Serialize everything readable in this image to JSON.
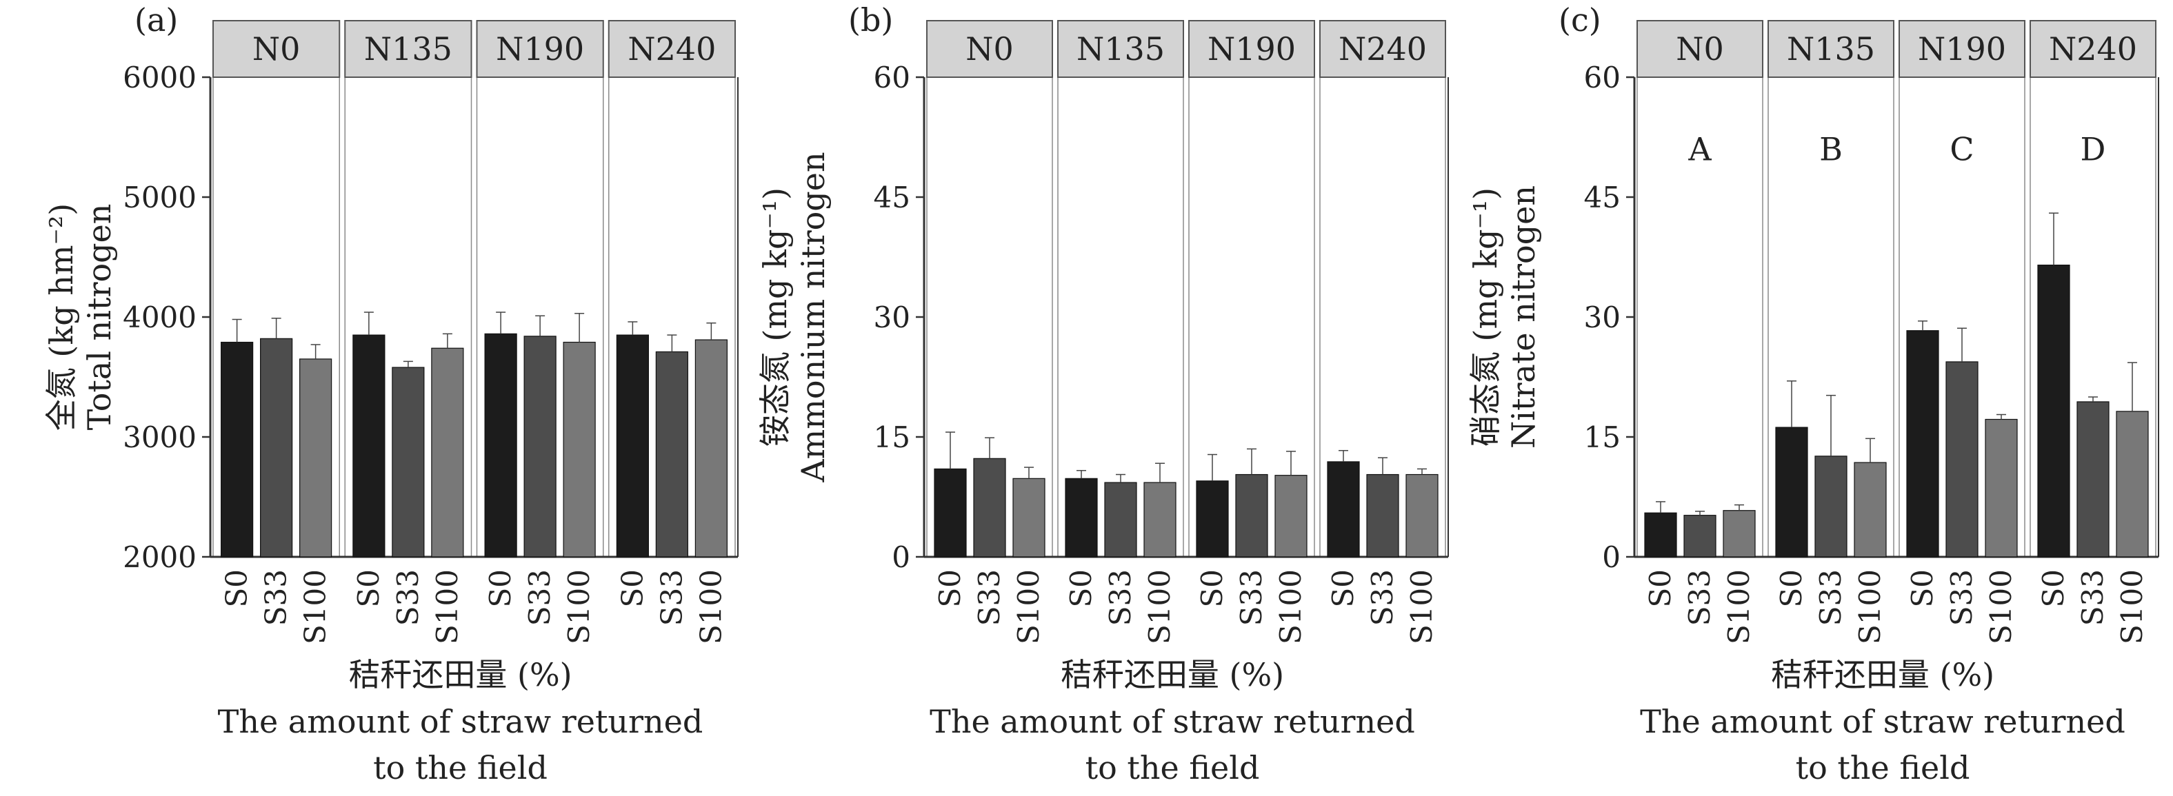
{
  "figure": {
    "x_title_cn": "秸秆还田量 (%)",
    "x_title_en_line1": "The amount of straw returned",
    "x_title_en_line2": "to the field"
  },
  "colors": {
    "S0": "#1c1c1c",
    "S33": "#4d4d4d",
    "S100": "#787878",
    "axis": "#333333",
    "strip": "#d3d3d3"
  },
  "chart_data": [
    {
      "type": "bar",
      "panel_label": "(a)",
      "ylabel_cn": "全氮 (kg hm⁻²)",
      "ylabel_en": "Total nitrogen",
      "ylim": [
        2000,
        6000
      ],
      "yticks": [
        "2000",
        "3000",
        "4000",
        "5000",
        "6000"
      ],
      "facets": [
        "N0",
        "N135",
        "N190",
        "N240"
      ],
      "categories": [
        "S0",
        "S33",
        "S100"
      ],
      "series": [
        {
          "facet": "N0",
          "values": [
            3790,
            3820,
            3650
          ],
          "errors": [
            190,
            170,
            120
          ]
        },
        {
          "facet": "N135",
          "values": [
            3850,
            3580,
            3740
          ],
          "errors": [
            190,
            50,
            120
          ]
        },
        {
          "facet": "N190",
          "values": [
            3860,
            3840,
            3790
          ],
          "errors": [
            180,
            170,
            240
          ]
        },
        {
          "facet": "N240",
          "values": [
            3850,
            3710,
            3810
          ],
          "errors": [
            110,
            140,
            140
          ]
        }
      ],
      "letters": []
    },
    {
      "type": "bar",
      "panel_label": "(b)",
      "ylabel_cn": "铵态氮 (mg kg⁻¹)",
      "ylabel_en": "Ammonium nitrogen",
      "ylim": [
        0,
        60
      ],
      "yticks": [
        "0",
        "15",
        "30",
        "45",
        "60"
      ],
      "facets": [
        "N0",
        "N135",
        "N190",
        "N240"
      ],
      "categories": [
        "S0",
        "S33",
        "S100"
      ],
      "series": [
        {
          "facet": "N0",
          "values": [
            11.0,
            12.3,
            9.8
          ],
          "errors": [
            4.6,
            2.6,
            1.4
          ]
        },
        {
          "facet": "N135",
          "values": [
            9.8,
            9.3,
            9.3
          ],
          "errors": [
            1.0,
            1.0,
            2.4
          ]
        },
        {
          "facet": "N190",
          "values": [
            9.5,
            10.3,
            10.2
          ],
          "errors": [
            3.3,
            3.2,
            3.0
          ]
        },
        {
          "facet": "N240",
          "values": [
            11.9,
            10.3,
            10.3
          ],
          "errors": [
            1.4,
            2.1,
            0.7
          ]
        }
      ],
      "letters": []
    },
    {
      "type": "bar",
      "panel_label": "(c)",
      "ylabel_cn": "硝态氮 (mg kg⁻¹)",
      "ylabel_en": "Nitrate nitrogen",
      "ylim": [
        0,
        60
      ],
      "yticks": [
        "0",
        "15",
        "30",
        "45",
        "60"
      ],
      "facets": [
        "N0",
        "N135",
        "N190",
        "N240"
      ],
      "categories": [
        "S0",
        "S33",
        "S100"
      ],
      "series": [
        {
          "facet": "N0",
          "values": [
            5.5,
            5.2,
            5.8
          ],
          "errors": [
            1.4,
            0.5,
            0.7
          ]
        },
        {
          "facet": "N135",
          "values": [
            16.2,
            12.6,
            11.8
          ],
          "errors": [
            5.8,
            7.6,
            3.0
          ]
        },
        {
          "facet": "N190",
          "values": [
            28.3,
            24.4,
            17.2
          ],
          "errors": [
            1.2,
            4.2,
            0.6
          ]
        },
        {
          "facet": "N240",
          "values": [
            36.5,
            19.4,
            18.2
          ],
          "errors": [
            6.5,
            0.6,
            6.1
          ]
        }
      ],
      "letters": [
        "A",
        "B",
        "C",
        "D"
      ]
    }
  ]
}
